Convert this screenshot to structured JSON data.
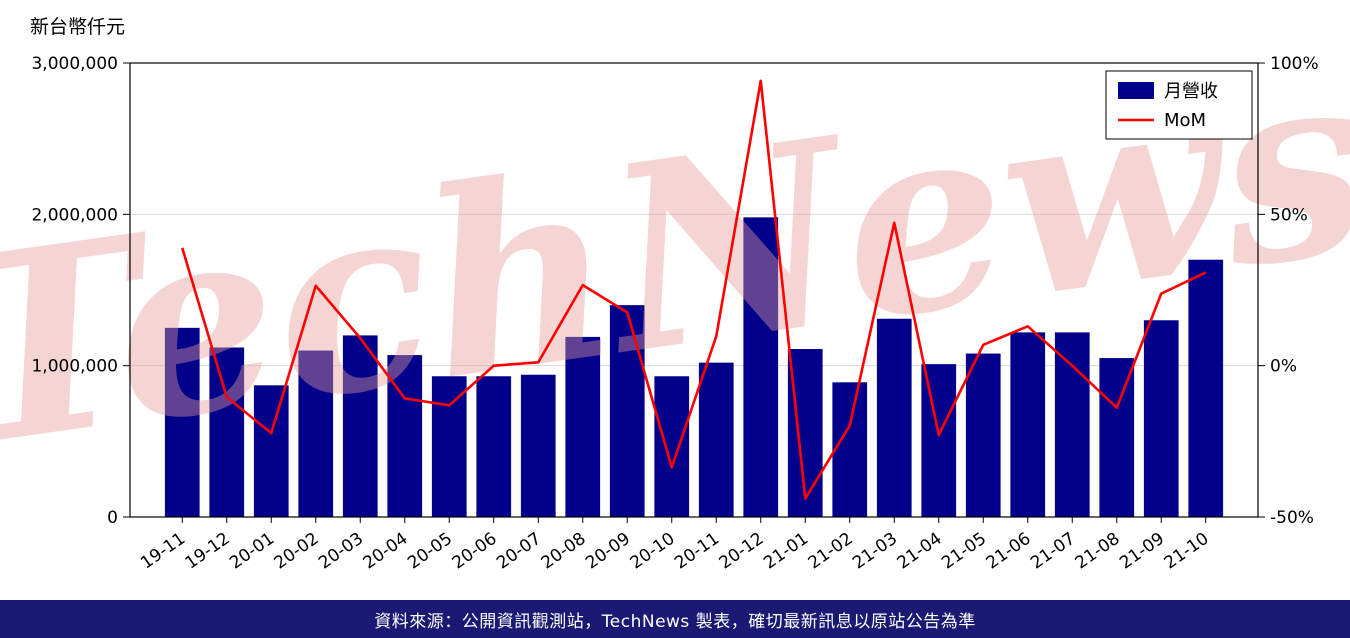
{
  "page": {
    "watermark": "TechNews",
    "footer": {
      "text": "資料來源：公開資訊觀測站，TechNews 製表，確切最新訊息以原站公告為準",
      "bg_color": "#1a1a75",
      "text_color": "#ffffff"
    }
  },
  "chart_data": {
    "type": "bar",
    "title": "",
    "unit_label": "新台幣仟元",
    "categories": [
      "19-11",
      "19-12",
      "20-01",
      "20-02",
      "20-03",
      "20-04",
      "20-05",
      "20-06",
      "20-07",
      "20-08",
      "20-09",
      "20-10",
      "20-11",
      "20-12",
      "21-01",
      "21-02",
      "21-03",
      "21-04",
      "21-05",
      "21-06",
      "21-07",
      "21-08",
      "21-09",
      "21-10"
    ],
    "series": [
      {
        "name": "月營收",
        "type": "bar",
        "axis": "left",
        "color": "#00008b",
        "values": [
          1250000,
          1120000,
          870000,
          1100000,
          1200000,
          1070000,
          930000,
          930000,
          940000,
          1190000,
          1400000,
          930000,
          1020000,
          1980000,
          1110000,
          890000,
          1310000,
          1010000,
          1080000,
          1220000,
          1220000,
          1050000,
          1300000,
          1700000
        ]
      },
      {
        "name": "MoM",
        "type": "line",
        "axis": "right",
        "color": "#ff0000",
        "values": [
          38.9,
          -10.4,
          -22.3,
          26.4,
          9.1,
          -10.8,
          -13.1,
          0.0,
          1.1,
          26.6,
          17.6,
          -33.6,
          9.7,
          94.1,
          -43.9,
          -19.8,
          47.2,
          -22.9,
          6.9,
          13.0,
          0.0,
          -13.9,
          23.8,
          30.8
        ]
      }
    ],
    "left_axis": {
      "min": 0,
      "max": 3000000,
      "ticks": [
        0,
        1000000,
        2000000,
        3000000
      ],
      "tick_labels": [
        "0",
        "1,000,000",
        "2,000,000",
        "3,000,000"
      ],
      "grid_values": [
        1000000,
        2000000
      ]
    },
    "right_axis": {
      "min": -50,
      "max": 100,
      "ticks": [
        -50,
        0,
        50,
        100
      ],
      "tick_labels": [
        "-50%",
        "0%",
        "50%",
        "100%"
      ]
    },
    "legend_position": "top-right",
    "grid": "horizontal",
    "watermark_color": "#e89b9b"
  }
}
